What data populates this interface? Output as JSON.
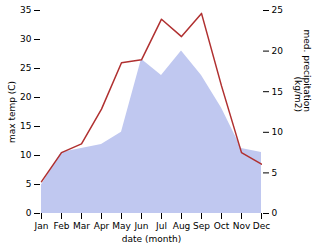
{
  "chart_data": {
    "type": "line",
    "xlabel": "date (month)",
    "ylabel": "max temp (C)",
    "y2label": "med. precipitation\n(kg/m2)",
    "categories": [
      "Jan",
      "Feb",
      "Mar",
      "Apr",
      "May",
      "Jun",
      "Jul",
      "Aug",
      "Sep",
      "Oct",
      "Nov",
      "Dec"
    ],
    "series": [
      {
        "type": "area",
        "axis": "y2",
        "color": "#c0c8f0",
        "values": [
          3.5,
          7.5,
          8.0,
          8.5,
          10.0,
          19.0,
          17.0,
          20.0,
          17.0,
          13.0,
          8.0,
          7.5
        ]
      },
      {
        "type": "line",
        "color": "#b03030",
        "values": [
          5.5,
          10.5,
          12.0,
          18.0,
          26.0,
          26.5,
          33.5,
          30.5,
          34.5,
          22.0,
          10.5,
          8.5
        ]
      }
    ],
    "ylim": [
      0,
      35
    ],
    "yticks": [
      0,
      5,
      10,
      15,
      20,
      25,
      30,
      35
    ],
    "y2lim": [
      0,
      25
    ],
    "y2ticks": [
      0,
      5,
      10,
      15,
      20,
      25
    ],
    "grid": false
  }
}
